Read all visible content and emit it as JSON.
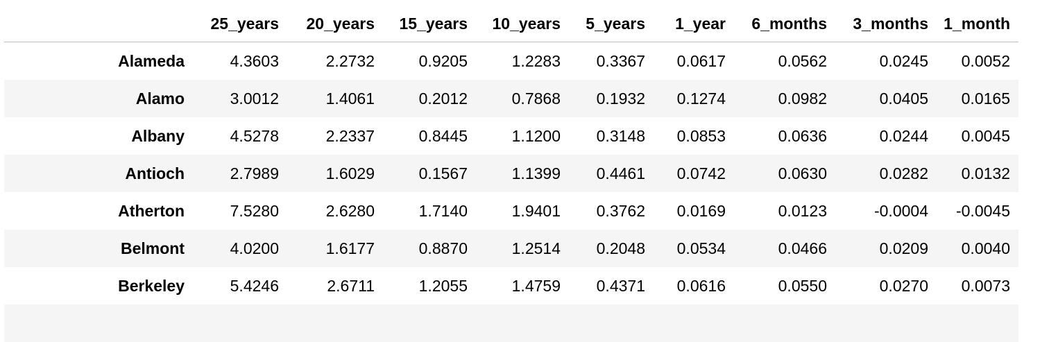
{
  "table": {
    "columns": [
      "25_years",
      "20_years",
      "15_years",
      "10_years",
      "5_years",
      "1_year",
      "6_months",
      "3_months",
      "1_month"
    ],
    "rows": [
      {
        "label": "Alameda",
        "values": [
          "4.3603",
          "2.2732",
          "0.9205",
          "1.2283",
          "0.3367",
          "0.0617",
          "0.0562",
          "0.0245",
          "0.0052"
        ]
      },
      {
        "label": "Alamo",
        "values": [
          "3.0012",
          "1.4061",
          "0.2012",
          "0.7868",
          "0.1932",
          "0.1274",
          "0.0982",
          "0.0405",
          "0.0165"
        ]
      },
      {
        "label": "Albany",
        "values": [
          "4.5278",
          "2.2337",
          "0.8445",
          "1.1200",
          "0.3148",
          "0.0853",
          "0.0636",
          "0.0244",
          "0.0045"
        ]
      },
      {
        "label": "Antioch",
        "values": [
          "2.7989",
          "1.6029",
          "0.1567",
          "1.1399",
          "0.4461",
          "0.0742",
          "0.0630",
          "0.0282",
          "0.0132"
        ]
      },
      {
        "label": "Atherton",
        "values": [
          "7.5280",
          "2.6280",
          "1.7140",
          "1.9401",
          "0.3762",
          "0.0169",
          "0.0123",
          "-0.0004",
          "-0.0045"
        ]
      },
      {
        "label": "Belmont",
        "values": [
          "4.0200",
          "1.6177",
          "0.8870",
          "1.2514",
          "0.2048",
          "0.0534",
          "0.0466",
          "0.0209",
          "0.0040"
        ]
      },
      {
        "label": "Berkeley",
        "values": [
          "5.4246",
          "2.6711",
          "1.2055",
          "1.4759",
          "0.4371",
          "0.0616",
          "0.0550",
          "0.0270",
          "0.0073"
        ]
      }
    ]
  }
}
